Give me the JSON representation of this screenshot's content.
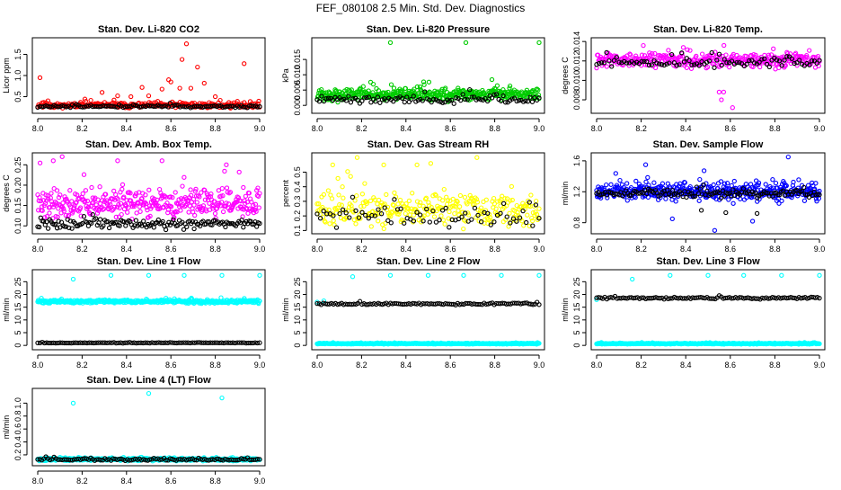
{
  "page": {
    "title": "FEF_080108  2.5 Min. Std. Dev. Diagnostics"
  },
  "chart_data": [
    {
      "id": "p1",
      "type": "scatter",
      "title": "Stan. Dev. Li-820 CO2",
      "xlabel": "",
      "ylabel": "Licor ppm",
      "xlim": [
        8.0,
        9.0
      ],
      "ylim": [
        0.15,
        1.85
      ],
      "xticks": [
        8.0,
        8.2,
        8.4,
        8.6,
        8.8,
        9.0
      ],
      "yticks": [
        0.5,
        1.0,
        1.5
      ],
      "series": [
        {
          "color": "#ff0000",
          "gen": {
            "n": 260,
            "base": 0.3,
            "spread": 0.1,
            "min": 0.2,
            "seed": 11
          },
          "outliers": [
            [
              8.01,
              0.95
            ],
            [
              8.29,
              0.6
            ],
            [
              8.36,
              0.52
            ],
            [
              8.42,
              0.5
            ],
            [
              8.47,
              0.72
            ],
            [
              8.5,
              0.52
            ],
            [
              8.56,
              0.68
            ],
            [
              8.59,
              0.9
            ],
            [
              8.6,
              0.85
            ],
            [
              8.64,
              0.7
            ],
            [
              8.65,
              1.38
            ],
            [
              8.67,
              1.75
            ],
            [
              8.69,
              0.7
            ],
            [
              8.72,
              1.2
            ],
            [
              8.75,
              0.82
            ],
            [
              8.8,
              0.5
            ],
            [
              8.93,
              1.28
            ]
          ]
        },
        {
          "color": "#000000",
          "gen": {
            "n": 110,
            "base": 0.27,
            "spread": 0.04,
            "min": 0.18,
            "seed": 12
          },
          "outliers": []
        }
      ]
    },
    {
      "id": "p2",
      "type": "scatter",
      "title": "Stan. Dev. Li-820 Pressure",
      "xlabel": "",
      "ylabel": "kPa",
      "xlim": [
        8.0,
        9.0
      ],
      "ylim": [
        -0.002,
        0.0215
      ],
      "xticks": [
        8.0,
        8.2,
        8.4,
        8.6,
        8.8,
        9.0
      ],
      "yticks": [
        0.0,
        0.005,
        0.01,
        0.015
      ],
      "series": [
        {
          "color": "#00cc00",
          "gen": {
            "n": 420,
            "base": 0.0035,
            "spread": 0.0028,
            "min": 0.0002,
            "seed": 21
          },
          "outliers": [
            [
              8.33,
              0.0205
            ],
            [
              8.67,
              0.0205
            ],
            [
              9.0,
              0.0205
            ]
          ]
        },
        {
          "color": "#000000",
          "gen": {
            "n": 100,
            "base": 0.002,
            "spread": 0.0018,
            "min": 0.0002,
            "seed": 22
          },
          "outliers": []
        }
      ]
    },
    {
      "id": "p3",
      "type": "scatter",
      "title": "Stan. Dev. Li-820 Temp.",
      "xlabel": "",
      "ylabel": "degrees C",
      "xlim": [
        8.0,
        9.0
      ],
      "ylim": [
        0.0068,
        0.0142
      ],
      "xticks": [
        8.0,
        8.2,
        8.4,
        8.6,
        8.8,
        9.0
      ],
      "yticks": [
        0.008,
        0.01,
        0.012,
        0.014
      ],
      "series": [
        {
          "color": "#ff00ff",
          "gen": {
            "n": 330,
            "base": 0.0121,
            "spread": 0.0011,
            "min": 0.0096,
            "seed": 31
          },
          "outliers": [
            [
              8.55,
              0.0088
            ],
            [
              8.57,
              0.0088
            ],
            [
              8.61,
              0.0072
            ],
            [
              8.56,
              0.008
            ]
          ]
        },
        {
          "color": "#000000",
          "gen": {
            "n": 90,
            "base": 0.0118,
            "spread": 0.0007,
            "min": 0.0105,
            "seed": 32
          },
          "outliers": []
        }
      ]
    },
    {
      "id": "p4",
      "type": "scatter",
      "title": "Stan. Dev. Amb. Box Temp.",
      "xlabel": "",
      "ylabel": "degrees C",
      "xlim": [
        8.0,
        9.0
      ],
      "ylim": [
        0.085,
        0.275
      ],
      "xticks": [
        8.0,
        8.2,
        8.4,
        8.6,
        8.8,
        9.0
      ],
      "yticks": [
        0.1,
        0.15,
        0.2,
        0.25
      ],
      "series": [
        {
          "color": "#ff00ff",
          "gen": {
            "n": 380,
            "base": 0.155,
            "spread": 0.05,
            "min": 0.095,
            "seed": 41
          },
          "outliers": [
            [
              8.07,
              0.26
            ],
            [
              8.11,
              0.27
            ],
            [
              8.36,
              0.26
            ],
            [
              8.56,
              0.26
            ],
            [
              8.85,
              0.25
            ]
          ]
        },
        {
          "color": "#000000",
          "gen": {
            "n": 150,
            "base": 0.105,
            "spread": 0.018,
            "min": 0.09,
            "seed": 42
          },
          "outliers": []
        }
      ]
    },
    {
      "id": "p5",
      "type": "scatter",
      "title": "Stan. Dev. Gas Stream RH",
      "xlabel": "",
      "ylabel": "percent",
      "xlim": [
        8.0,
        9.0
      ],
      "ylim": [
        0.09,
        0.62
      ],
      "xticks": [
        8.0,
        8.2,
        8.4,
        8.6,
        8.8,
        9.0
      ],
      "yticks": [
        0.1,
        0.2,
        0.3,
        0.4,
        0.5
      ],
      "series": [
        {
          "color": "#ffff00",
          "gen": {
            "n": 300,
            "base": 0.24,
            "spread": 0.16,
            "min": 0.11,
            "seed": 51
          },
          "outliers": [
            [
              8.07,
              0.55
            ],
            [
              8.18,
              0.6
            ],
            [
              8.3,
              0.55
            ],
            [
              8.45,
              0.55
            ],
            [
              8.72,
              0.6
            ]
          ]
        },
        {
          "color": "#000000",
          "gen": {
            "n": 70,
            "base": 0.2,
            "spread": 0.12,
            "min": 0.12,
            "seed": 52
          },
          "outliers": []
        }
      ]
    },
    {
      "id": "p6",
      "type": "scatter",
      "title": "Stan. Dev. Sample Flow",
      "xlabel": "",
      "ylabel": "ml/min",
      "xlim": [
        8.0,
        9.0
      ],
      "ylim": [
        0.68,
        1.68
      ],
      "xticks": [
        8.0,
        8.2,
        8.4,
        8.6,
        8.8,
        9.0
      ],
      "yticks": [
        0.8,
        1.2,
        1.6
      ],
      "series": [
        {
          "color": "#0000ff",
          "gen": {
            "n": 420,
            "base": 1.2,
            "spread": 0.16,
            "min": 0.85,
            "seed": 61
          },
          "outliers": [
            [
              8.34,
              0.85
            ],
            [
              8.53,
              0.7
            ],
            [
              8.7,
              0.82
            ],
            [
              8.86,
              1.65
            ],
            [
              8.22,
              1.55
            ]
          ]
        },
        {
          "color": "#000000",
          "gen": {
            "n": 130,
            "base": 1.18,
            "spread": 0.08,
            "min": 0.85,
            "seed": 62
          },
          "outliers": [
            [
              8.47,
              0.96
            ],
            [
              8.58,
              0.93
            ],
            [
              8.72,
              0.92
            ]
          ]
        }
      ]
    },
    {
      "id": "p7",
      "type": "scatter",
      "title": "Stan. Dev. Line 1 Flow",
      "xlabel": "",
      "ylabel": "ml/min",
      "xlim": [
        8.0,
        9.0
      ],
      "ylim": [
        -1,
        29
      ],
      "xticks": [
        8.0,
        8.2,
        8.4,
        8.6,
        8.8,
        9.0
      ],
      "yticks": [
        0,
        5,
        10,
        15,
        20,
        25
      ],
      "series": [
        {
          "color": "#00ffff",
          "gen": {
            "n": 420,
            "base": 17.2,
            "spread": 0.9,
            "min": 16,
            "seed": 71
          },
          "outliers": [
            [
              8.16,
              26
            ],
            [
              8.33,
              27.5
            ],
            [
              8.5,
              27.5
            ],
            [
              8.66,
              27.5
            ],
            [
              8.83,
              27.5
            ],
            [
              9.0,
              27.5
            ]
          ]
        },
        {
          "color": "#000000",
          "gen": {
            "n": 100,
            "base": 1.0,
            "spread": 0.2,
            "min": 0.6,
            "seed": 72
          },
          "outliers": []
        }
      ]
    },
    {
      "id": "p8",
      "type": "scatter",
      "title": "Stan. Dev. Line 2 Flow",
      "xlabel": "",
      "ylabel": "ml/min",
      "xlim": [
        8.0,
        9.0
      ],
      "ylim": [
        -1,
        29
      ],
      "xticks": [
        8.0,
        8.2,
        8.4,
        8.6,
        8.8,
        9.0
      ],
      "yticks": [
        0,
        5,
        10,
        15,
        20,
        25
      ],
      "series": [
        {
          "color": "#00ffff",
          "gen": {
            "n": 420,
            "base": 0.7,
            "spread": 0.3,
            "min": 0.3,
            "seed": 81
          },
          "outliers": [
            [
              8.0,
              17
            ],
            [
              8.03,
              17.5
            ],
            [
              8.16,
              27
            ],
            [
              8.33,
              27.5
            ],
            [
              8.5,
              27.5
            ],
            [
              8.66,
              27.5
            ],
            [
              8.83,
              27.5
            ],
            [
              9.0,
              27.5
            ]
          ]
        },
        {
          "color": "#000000",
          "gen": {
            "n": 110,
            "base": 16.3,
            "spread": 0.5,
            "min": 15.5,
            "seed": 82
          },
          "outliers": []
        }
      ]
    },
    {
      "id": "p9",
      "type": "scatter",
      "title": "Stan. Dev. Line 3 Flow",
      "xlabel": "",
      "ylabel": "ml/min",
      "xlim": [
        8.0,
        9.0
      ],
      "ylim": [
        -1,
        29
      ],
      "xticks": [
        8.0,
        8.2,
        8.4,
        8.6,
        8.8,
        9.0
      ],
      "yticks": [
        0,
        5,
        10,
        15,
        20,
        25
      ],
      "series": [
        {
          "color": "#00ffff",
          "gen": {
            "n": 420,
            "base": 0.7,
            "spread": 0.3,
            "min": 0.3,
            "seed": 91
          },
          "outliers": [
            [
              8.0,
              18
            ],
            [
              8.16,
              26
            ],
            [
              8.33,
              27.5
            ],
            [
              8.5,
              27.5
            ],
            [
              8.66,
              27.5
            ],
            [
              8.83,
              27.5
            ],
            [
              9.0,
              27.5
            ]
          ]
        },
        {
          "color": "#000000",
          "gen": {
            "n": 110,
            "base": 18.6,
            "spread": 0.6,
            "min": 17.5,
            "seed": 92
          },
          "outliers": []
        }
      ]
    },
    {
      "id": "p10",
      "type": "scatter",
      "title": "Stan. Dev. Line 4 (LT) Flow",
      "xlabel": "",
      "ylabel": "ml/min",
      "xlim": [
        8.0,
        9.0
      ],
      "ylim": [
        0.06,
        1.2
      ],
      "xticks": [
        8.0,
        8.2,
        8.4,
        8.6,
        8.8,
        9.0
      ],
      "yticks": [
        0.2,
        0.4,
        0.6,
        0.8,
        1.0
      ],
      "series": [
        {
          "color": "#00ffff",
          "gen": {
            "n": 420,
            "base": 0.13,
            "spread": 0.03,
            "min": 0.09,
            "seed": 101
          },
          "outliers": [
            [
              8.16,
              1.0
            ],
            [
              8.5,
              1.15
            ],
            [
              8.83,
              1.08
            ]
          ]
        },
        {
          "color": "#000000",
          "gen": {
            "n": 110,
            "base": 0.13,
            "spread": 0.025,
            "min": 0.1,
            "seed": 102
          },
          "outliers": []
        }
      ]
    }
  ]
}
